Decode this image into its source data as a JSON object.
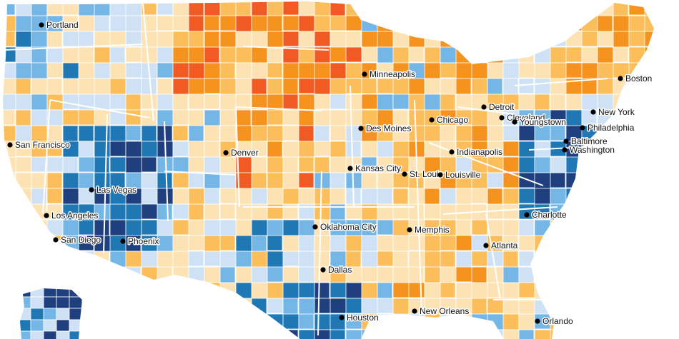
{
  "map": {
    "region": "United States",
    "palette": {
      "deep_blue": "#1f3f7f",
      "mid_blue": "#1f77b4",
      "sky_blue": "#74b6e6",
      "pale_blue": "#cfe2f5",
      "cream": "#fde3b4",
      "light_orange": "#fbbe5a",
      "orange": "#f6921e",
      "red_orange": "#f15a22",
      "state_border": "#ffffff"
    },
    "cities": [
      {
        "name": "Portland"
      },
      {
        "name": "San Francisco"
      },
      {
        "name": "Los Angeles"
      },
      {
        "name": "San Diego"
      },
      {
        "name": "Las Vegas"
      },
      {
        "name": "Phoenix"
      },
      {
        "name": "Denver"
      },
      {
        "name": "Minneapolis"
      },
      {
        "name": "Des Moines"
      },
      {
        "name": "Kansas City"
      },
      {
        "name": "Oklahoma City"
      },
      {
        "name": "Dallas"
      },
      {
        "name": "Houston"
      },
      {
        "name": "New Orleans"
      },
      {
        "name": "Memphis"
      },
      {
        "name": "St. Louis"
      },
      {
        "name": "Chicago"
      },
      {
        "name": "Indianapolis"
      },
      {
        "name": "Louisville"
      },
      {
        "name": "Detroit"
      },
      {
        "name": "Cleveland"
      },
      {
        "name": "Youngstown"
      },
      {
        "name": "Atlanta"
      },
      {
        "name": "Charlotte"
      },
      {
        "name": "Orlando"
      },
      {
        "name": "Washington"
      },
      {
        "name": "Baltimore"
      },
      {
        "name": "Philadelphia"
      },
      {
        "name": "New York"
      },
      {
        "name": "Boston"
      }
    ]
  }
}
